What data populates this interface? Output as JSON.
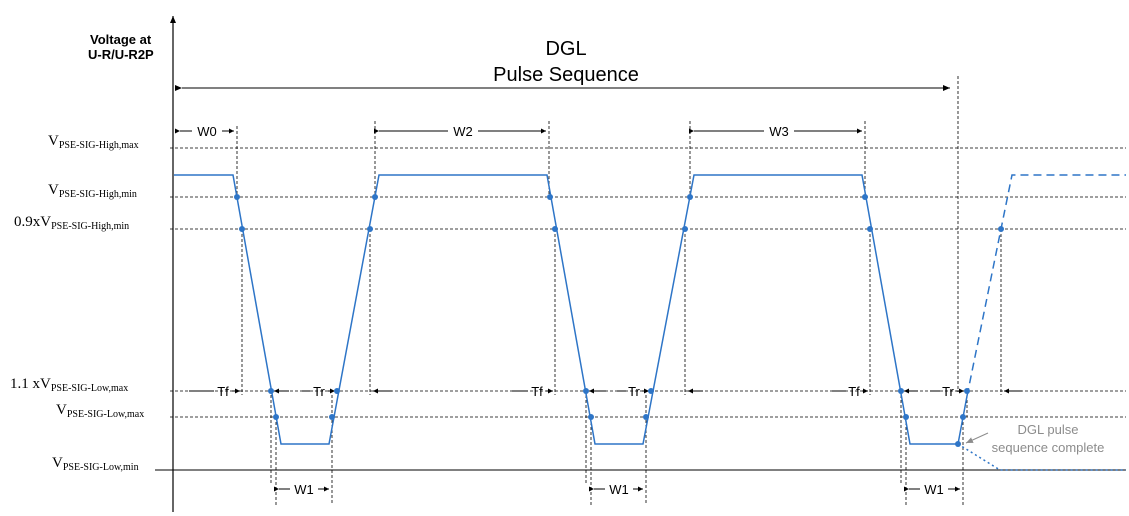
{
  "yaxis_label_line1": "Voltage at",
  "yaxis_label_line2": "U-R/U-R2P",
  "title": "DGL",
  "subtitle": "Pulse Sequence",
  "levels": {
    "high_max": {
      "prefix": "",
      "base": "V",
      "sub": "PSE-SIG-High,max"
    },
    "high_min": {
      "prefix": "",
      "base": "V",
      "sub": "PSE-SIG-High,min"
    },
    "high_min_09": {
      "prefix": "0.9x",
      "base": "V",
      "sub": "PSE-SIG-High,min"
    },
    "low_max_11": {
      "prefix": "1.1 x",
      "base": "V",
      "sub": "PSE-SIG-Low,max"
    },
    "low_max": {
      "prefix": "",
      "base": "V",
      "sub": "PSE-SIG-Low,max"
    },
    "low_min": {
      "prefix": "",
      "base": "V",
      "sub": "PSE-SIG-Low,min"
    }
  },
  "widths": {
    "w0": "W0",
    "w1": "W1",
    "w2": "W2",
    "w3": "W3"
  },
  "edges": {
    "tf": "Tf",
    "tr": "Tr"
  },
  "annotation_line1": "DGL pulse",
  "annotation_line2": "sequence complete",
  "colors": {
    "signal": "#2e75c7",
    "annotation": "#8c8c8c",
    "guides": "#000000"
  }
}
